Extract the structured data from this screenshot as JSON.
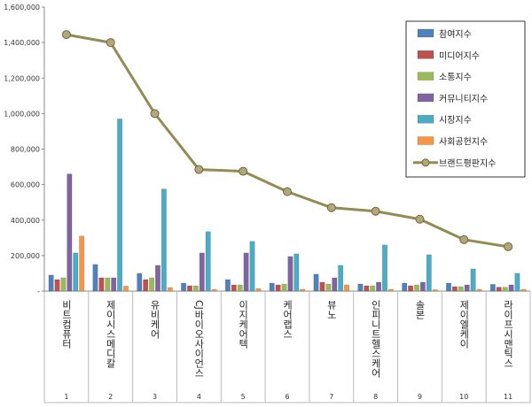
{
  "chart_data": {
    "type": "bar",
    "title": "",
    "xlabel": "",
    "ylabel": "",
    "ylim": [
      0,
      1600000
    ],
    "yticks": [
      "-",
      "200,000",
      "400,000",
      "600,000",
      "800,000",
      "1,000,000",
      "1,200,000",
      "1,400,000",
      "1,600,000"
    ],
    "grid": false,
    "legend_position": "top-right",
    "categories": [
      "비트컴퓨터",
      "제이시스메디칼",
      "유비케어",
      "CJ바이오사이언스",
      "이지케어텍",
      "케어랩스",
      "뷰노",
      "인피니트헬스케어",
      "솔본",
      "제이엘케이",
      "라이프시맨틱스"
    ],
    "ranks": [
      "1",
      "2",
      "3",
      "4",
      "5",
      "6",
      "7",
      "8",
      "9",
      "10",
      "11"
    ],
    "series": [
      {
        "name": "참여지수",
        "color": "#4F81BD",
        "values": [
          90000,
          150000,
          100000,
          45000,
          65000,
          45000,
          95000,
          40000,
          45000,
          45000,
          38000
        ]
      },
      {
        "name": "미디어지수",
        "color": "#C0504D",
        "values": [
          65000,
          75000,
          65000,
          30000,
          35000,
          35000,
          50000,
          30000,
          30000,
          25000,
          22000
        ]
      },
      {
        "name": "소통지수",
        "color": "#9BBB59",
        "values": [
          75000,
          75000,
          75000,
          30000,
          35000,
          40000,
          40000,
          30000,
          35000,
          25000,
          22000
        ]
      },
      {
        "name": "커뮤니티지수",
        "color": "#8064A2",
        "values": [
          660000,
          75000,
          145000,
          215000,
          215000,
          195000,
          75000,
          50000,
          50000,
          35000,
          35000
        ]
      },
      {
        "name": "시장지수",
        "color": "#4BACC6",
        "values": [
          215000,
          970000,
          575000,
          335000,
          280000,
          210000,
          145000,
          260000,
          205000,
          125000,
          100000
        ]
      },
      {
        "name": "사회공헌지수",
        "color": "#F79646",
        "values": [
          310000,
          28000,
          20000,
          10000,
          15000,
          10000,
          35000,
          10000,
          8000,
          10000,
          10000
        ]
      }
    ],
    "line": {
      "name": "브랜드평판지수",
      "color": "#948A54",
      "values": [
        1445000,
        1400000,
        1000000,
        685000,
        675000,
        560000,
        470000,
        450000,
        405000,
        290000,
        250000
      ]
    }
  }
}
